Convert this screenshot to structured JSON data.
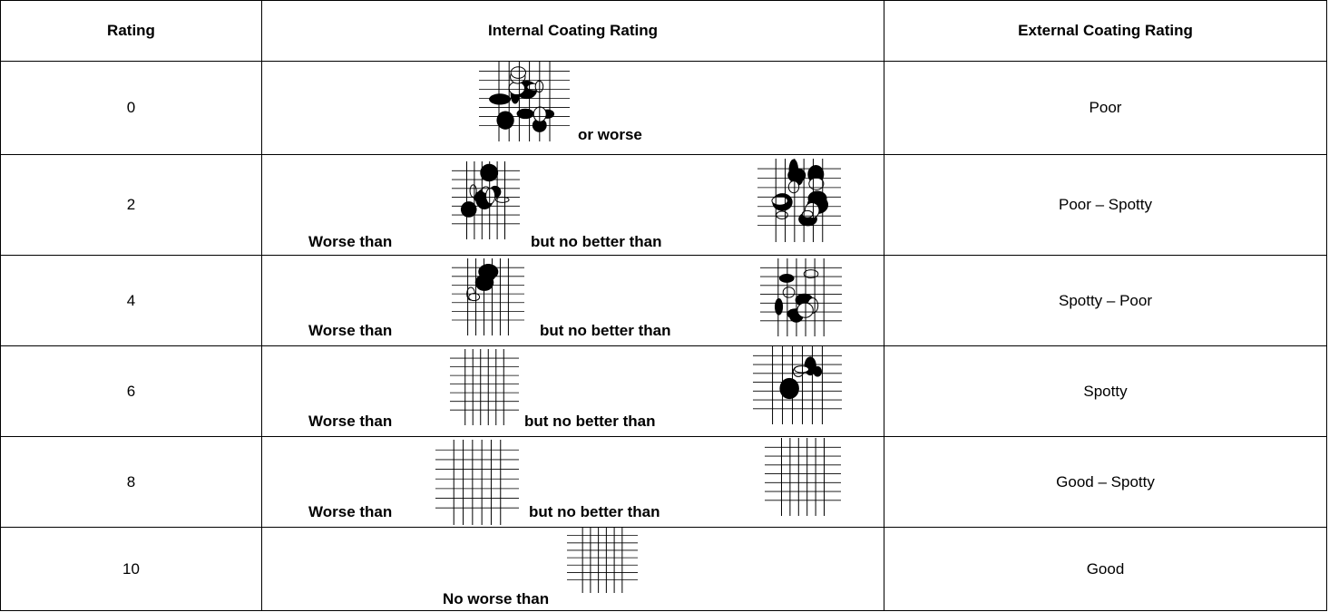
{
  "table": {
    "header": [
      "Rating",
      "Internal Coating Rating",
      "External Coating Rating"
    ],
    "rows": [
      {
        "rating": 0,
        "internal": [
          "or worse"
        ],
        "external": "Poor"
      },
      {
        "rating": 2,
        "internal": [
          "Worse than",
          "but no better than"
        ],
        "external": "Poor – Spotty"
      },
      {
        "rating": 4,
        "internal": [
          "Worse than",
          "but no better than"
        ],
        "external": "Spotty – Poor"
      },
      {
        "rating": 6,
        "internal": [
          "Worse than",
          "but no better than"
        ],
        "external": "Spotty"
      },
      {
        "rating": 8,
        "internal": [
          "Worse than",
          "but no better than"
        ],
        "external": "Good – Spotty"
      },
      {
        "rating": 10,
        "internal": [
          "No worse than"
        ],
        "external": "Good"
      }
    ]
  }
}
